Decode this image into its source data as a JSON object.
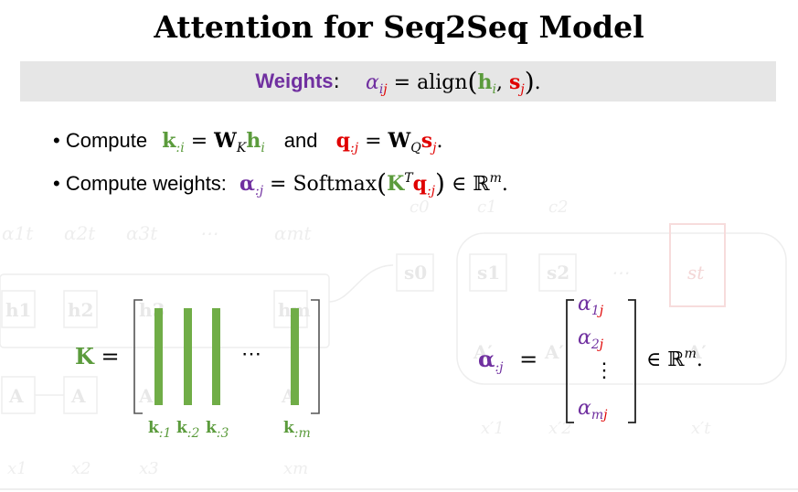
{
  "title": "Attention for Seq2Seq Model",
  "weights_bar": {
    "label": "Weights",
    "colon": ":",
    "alpha": "α",
    "alpha_sub_i": "i",
    "alpha_sub_j": "j",
    "eq": "=",
    "func": "align",
    "h": "h",
    "h_sub": "i",
    "s": "s",
    "s_sub": "j",
    "end": "."
  },
  "bullet_1": {
    "dot": "•",
    "text_compute": "Compute",
    "k": "k",
    "k_sub": ":i",
    "eq1": "=",
    "W_k": "W",
    "W_k_sub": "K",
    "h": "h",
    "h_sub": "i",
    "and": "and",
    "q": "q",
    "q_sub": ":j",
    "eq2": "=",
    "W_q": "W",
    "W_q_sub": "Q",
    "s": "s",
    "s_sub": "j",
    "end": "."
  },
  "bullet_2": {
    "dot": "•",
    "text": "Compute weights:",
    "alpha": "α",
    "alpha_sub": ":j",
    "eq": "=",
    "func": "Softmax",
    "K": "K",
    "K_sup": "T",
    "q": "q",
    "q_sub": ":j",
    "in": "∈",
    "R": "ℝ",
    "R_sup": "m",
    "end": "."
  },
  "k_matrix": {
    "K": "K",
    "eq": "=",
    "dots": "⋯",
    "col_labels": [
      {
        "k": "k",
        "sub": ":1"
      },
      {
        "k": "k",
        "sub": ":2"
      },
      {
        "k": "k",
        "sub": ":3"
      },
      {
        "k": "k",
        "sub": ":m"
      }
    ]
  },
  "alpha_vector": {
    "alpha": "α",
    "sub": ":j",
    "eq": "=",
    "entries": [
      {
        "a": "α",
        "sub_i": "1",
        "sub_j": "j"
      },
      {
        "a": "α",
        "sub_i": "2",
        "sub_j": "j"
      },
      {
        "a": "α",
        "sub_i": "m",
        "sub_j": "j"
      }
    ],
    "vdots": "⋮",
    "in": "∈",
    "R": "ℝ",
    "R_sup": "m",
    "end": "."
  },
  "background": {
    "alphas": [
      "α1t",
      "α2t",
      "α3t",
      "⋯",
      "αmt"
    ],
    "h_nodes": [
      "h1",
      "h2",
      "h3",
      "hm"
    ],
    "A_nodes": [
      "A",
      "A",
      "A",
      "A"
    ],
    "x_nodes": [
      "x1",
      "x2",
      "x3",
      "xm"
    ],
    "c_labels": [
      "c0",
      "c1",
      "c2"
    ],
    "s_nodes": [
      "s0",
      "s1",
      "s2",
      "⋯",
      "st"
    ],
    "A_prime": [
      "A′",
      "A′",
      "A′"
    ],
    "x_prime": [
      "x′1",
      "x′2",
      "x′t"
    ]
  },
  "colors": {
    "purple": "#7030A0",
    "green": "#5B9B3C",
    "red": "#E00000",
    "bar_bg": "#E6E6E6",
    "faint": "#EEEEEE"
  }
}
